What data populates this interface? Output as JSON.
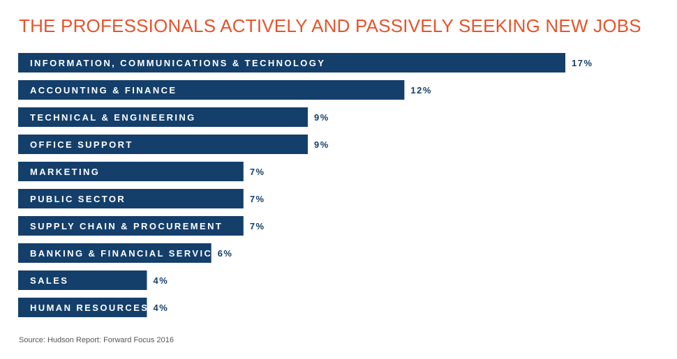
{
  "chart_data": {
    "type": "bar",
    "orientation": "horizontal",
    "title": "THE PROFESSIONALS ACTIVELY AND PASSIVELY SEEKING NEW JOBS",
    "categories": [
      "INFORMATION, COMMUNICATIONS & TECHNOLOGY",
      "ACCOUNTING & FINANCE",
      "TECHNICAL & ENGINEERING",
      "OFFICE SUPPORT",
      "MARKETING",
      "PUBLIC SECTOR",
      "SUPPLY CHAIN & PROCUREMENT",
      "BANKING & FINANCIAL SERVICES",
      "SALES",
      "HUMAN RESOURCES"
    ],
    "values": [
      17,
      12,
      9,
      9,
      7,
      7,
      7,
      6,
      4,
      4
    ],
    "value_labels": [
      "17%",
      "12%",
      "9%",
      "9%",
      "7%",
      "7%",
      "7%",
      "6%",
      "4%",
      "4%"
    ],
    "unit": "%",
    "xlim": [
      0,
      17
    ],
    "grid": false,
    "legend": "none",
    "source": "Source: Hudson Report: Forward Focus 2016"
  },
  "colors": {
    "title": "#e8532b",
    "bar": "#143f6b",
    "bar_label": "#ffffff",
    "value_label": "#143f6b"
  }
}
